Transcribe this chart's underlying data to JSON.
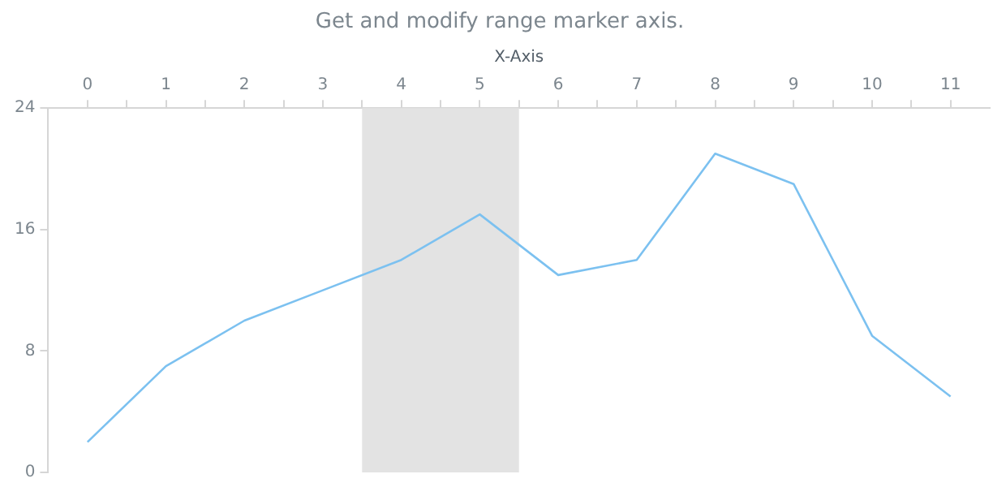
{
  "chart_data": {
    "type": "line",
    "title": "Get and modify range marker axis.",
    "xlabel": "X-Axis",
    "x": [
      0,
      1,
      2,
      3,
      4,
      5,
      6,
      7,
      8,
      9,
      10,
      11
    ],
    "series": [
      {
        "color": "#7cc1f0",
        "values": [
          2,
          7,
          10,
          12,
          14,
          17,
          13,
          14,
          21,
          19,
          9,
          5
        ]
      }
    ],
    "xlim": [
      -0.5,
      11.5
    ],
    "xticks": [
      0,
      {
        "value": 0.5,
        "label": null
      },
      1,
      {
        "value": 1.5,
        "label": null
      },
      2,
      {
        "value": 2.5,
        "label": null
      },
      3,
      {
        "value": 3.5,
        "label": null
      },
      4,
      {
        "value": 4.5,
        "label": null
      },
      5,
      {
        "value": 5.5,
        "label": null
      },
      6,
      {
        "value": 6.5,
        "label": null
      },
      7,
      {
        "value": 7.5,
        "label": null
      },
      8,
      {
        "value": 8.5,
        "label": null
      },
      9,
      {
        "value": 9.5,
        "label": null
      },
      10,
      {
        "value": 10.5,
        "label": null
      },
      11
    ],
    "ylim": [
      0,
      24
    ],
    "yticks": [
      0,
      8,
      16,
      24
    ],
    "bands": [
      {
        "axis": "x",
        "from": 3.5,
        "to": 5.5,
        "color": "#e3e3e3"
      }
    ],
    "legend": false,
    "marker": "none",
    "line_style": "solid"
  }
}
